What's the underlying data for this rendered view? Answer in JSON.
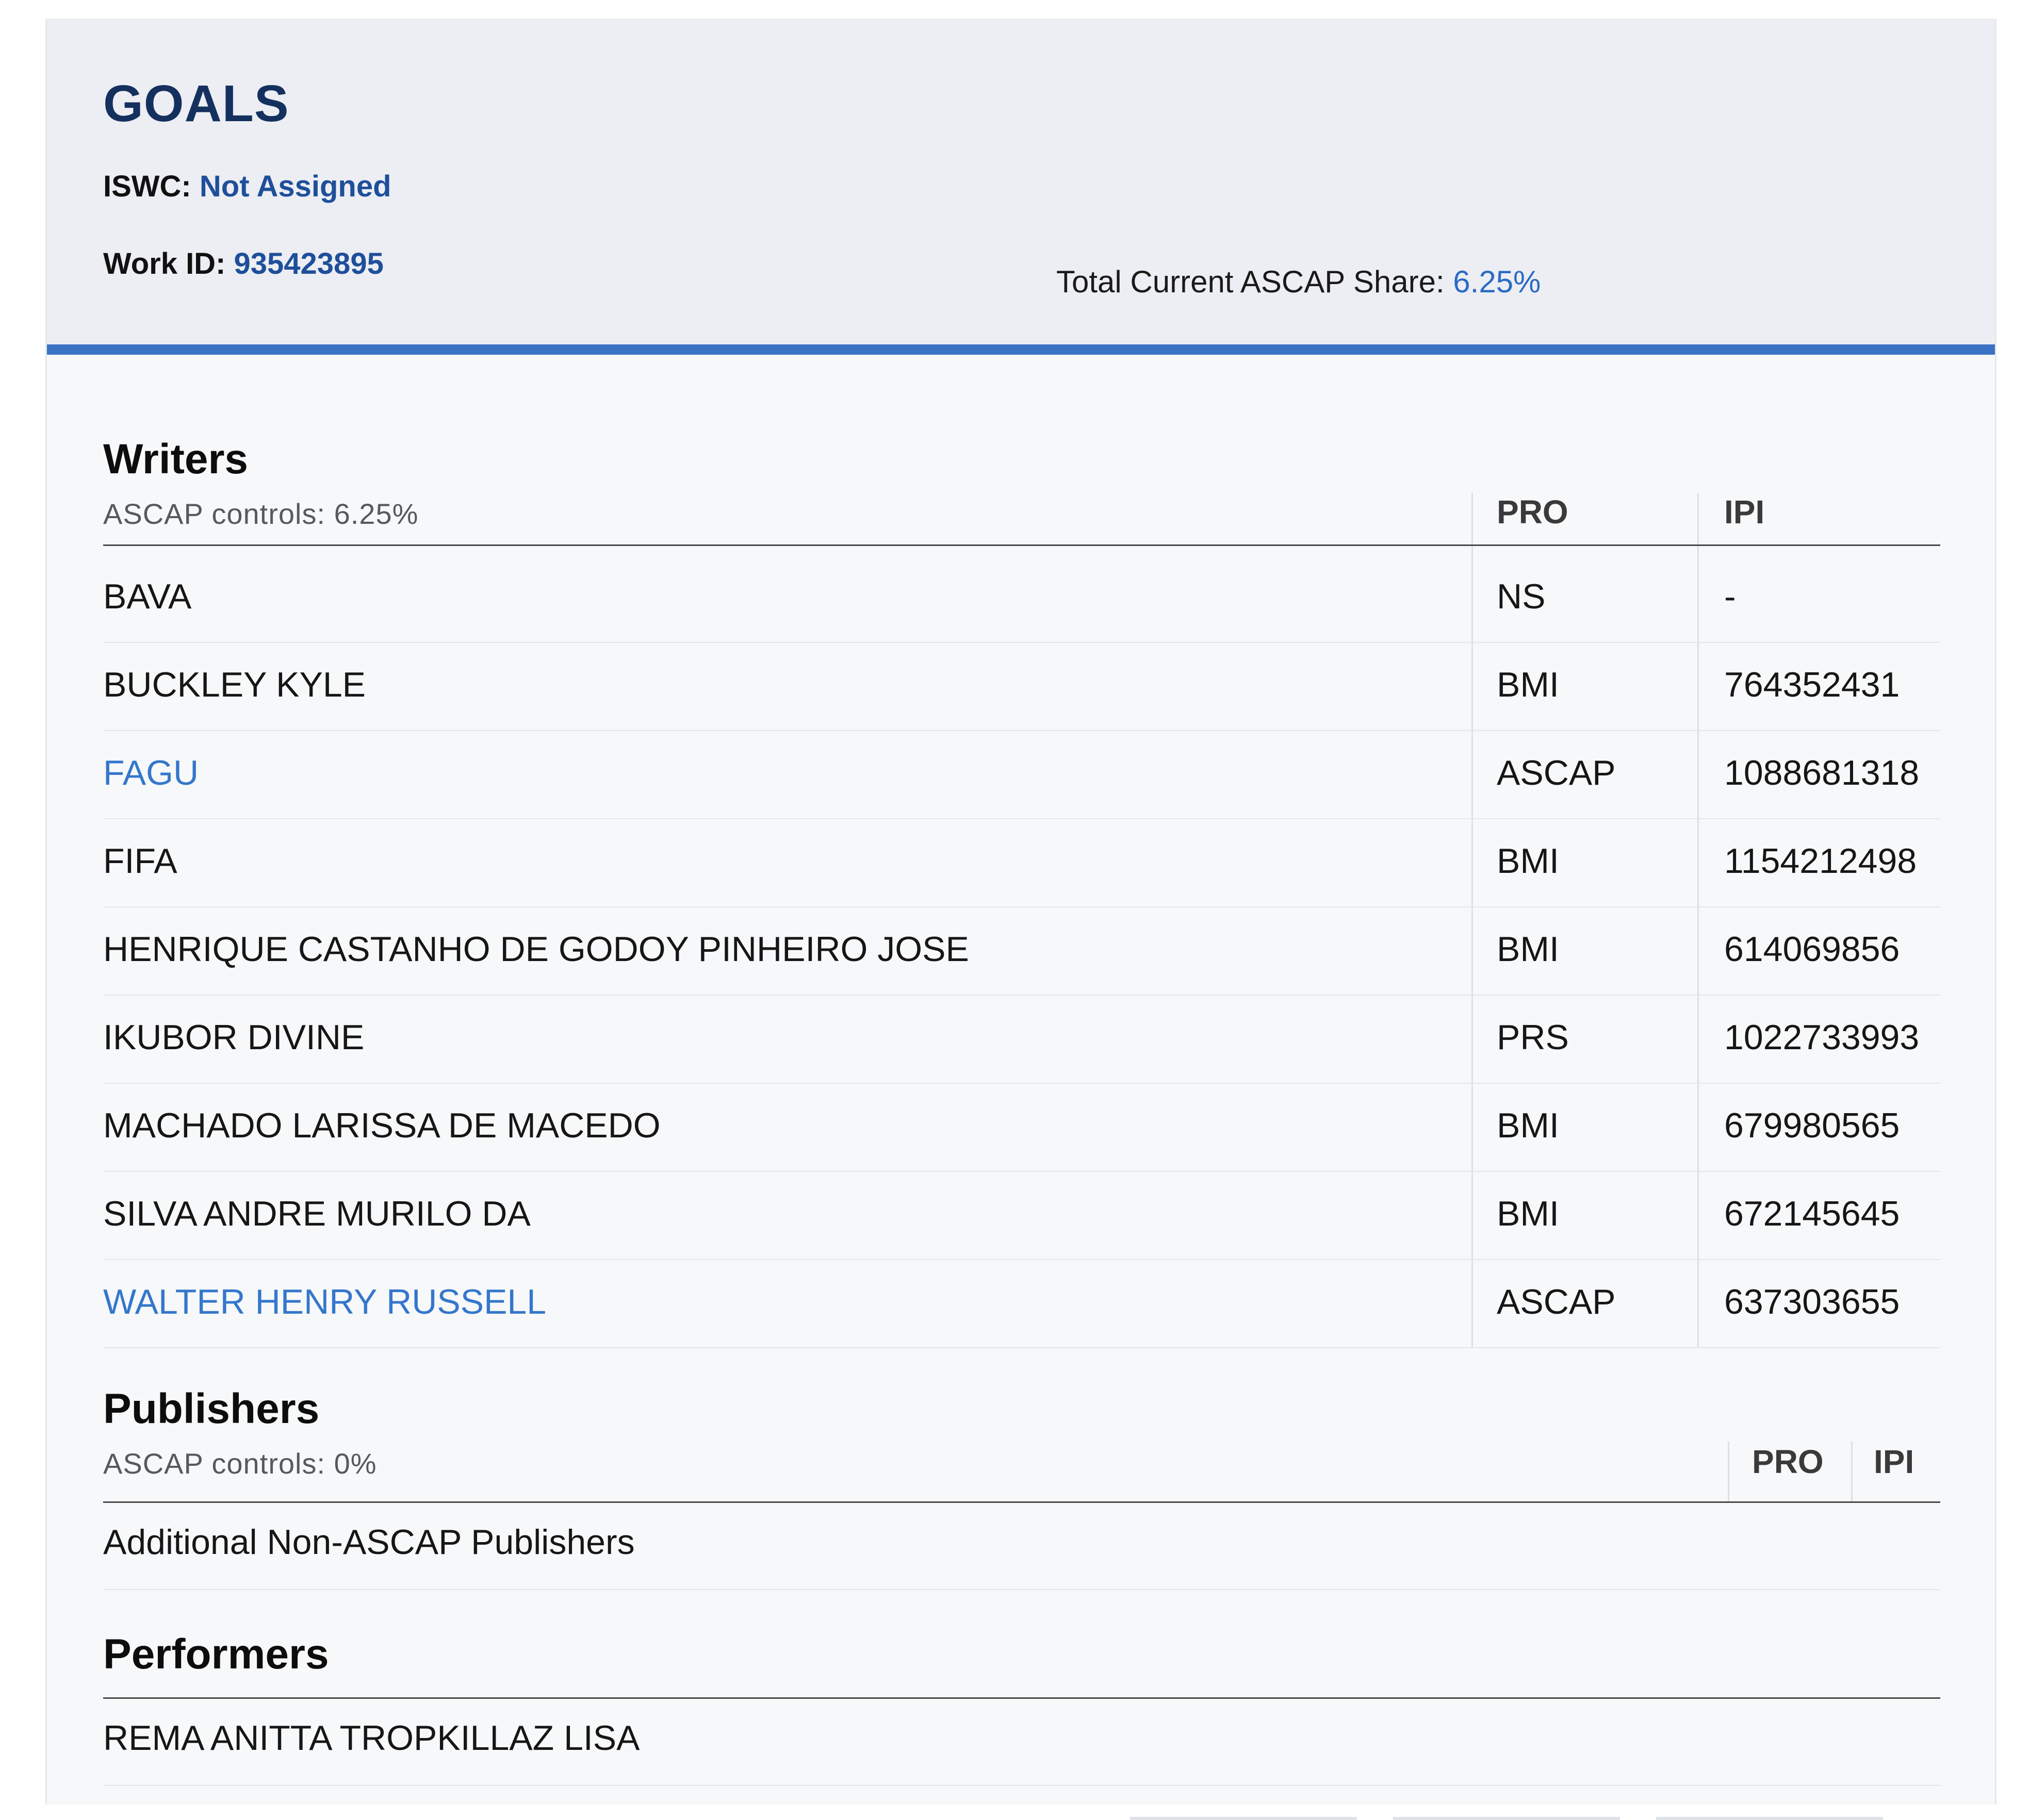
{
  "work": {
    "title": "GOALS",
    "iswc_label": "ISWC:",
    "iswc_value": "Not Assigned",
    "work_id_label": "Work ID:",
    "work_id_value": "935423895",
    "share_label": "Total Current ASCAP Share:",
    "share_value": "6.25%"
  },
  "writers": {
    "title": "Writers",
    "controls": "ASCAP controls: 6.25%",
    "col_pro": "PRO",
    "col_ipi": "IPI",
    "rows": [
      {
        "name": "BAVA",
        "pro": "NS",
        "ipi": "-",
        "link": false
      },
      {
        "name": "BUCKLEY KYLE",
        "pro": "BMI",
        "ipi": "764352431",
        "link": false
      },
      {
        "name": "FAGU",
        "pro": "ASCAP",
        "ipi": "1088681318",
        "link": true
      },
      {
        "name": "FIFA",
        "pro": "BMI",
        "ipi": "1154212498",
        "link": false
      },
      {
        "name": "HENRIQUE CASTANHO DE GODOY PINHEIRO JOSE",
        "pro": "BMI",
        "ipi": "614069856",
        "link": false
      },
      {
        "name": "IKUBOR DIVINE",
        "pro": "PRS",
        "ipi": "1022733993",
        "link": false
      },
      {
        "name": "MACHADO LARISSA DE MACEDO",
        "pro": "BMI",
        "ipi": "679980565",
        "link": false
      },
      {
        "name": "SILVA ANDRE MURILO DA",
        "pro": "BMI",
        "ipi": "672145645",
        "link": false
      },
      {
        "name": "WALTER HENRY RUSSELL",
        "pro": "ASCAP",
        "ipi": "637303655",
        "link": true
      }
    ]
  },
  "publishers": {
    "title": "Publishers",
    "controls": "ASCAP controls: 0%",
    "col_pro": "PRO",
    "col_ipi": "IPI",
    "rows": [
      {
        "name": "Additional Non-ASCAP Publishers"
      }
    ]
  },
  "performers": {
    "title": "Performers",
    "rows": [
      {
        "name": "REMA ANITTA TROPKILLAZ LISA"
      }
    ]
  },
  "colors": {
    "title_navy": "#14305e",
    "value_blue": "#1f4f9a",
    "link_blue": "#3477cc",
    "accent_bar": "#3a72c4"
  }
}
